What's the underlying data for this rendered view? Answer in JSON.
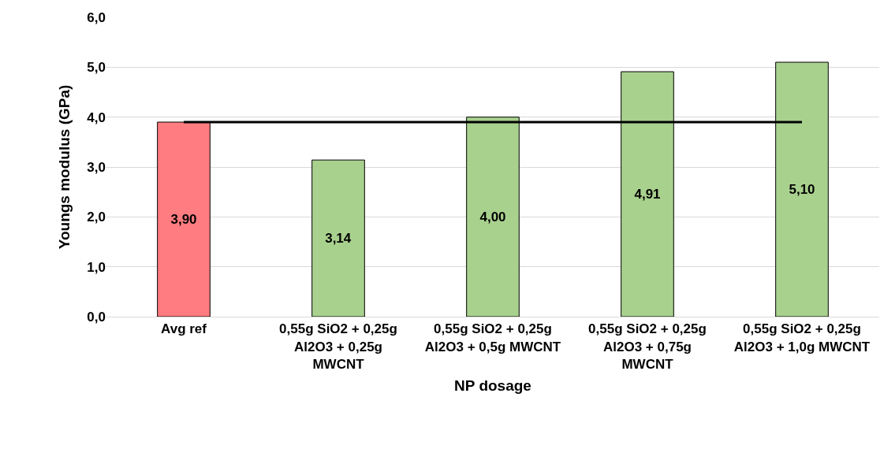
{
  "chart_data": {
    "type": "bar",
    "xlabel": "NP dosage",
    "ylabel": "Youngs modulus (GPa)",
    "categories": [
      "Avg ref",
      "0,55g SiO2 + 0,25g Al2O3 + 0,25g MWCNT",
      "0,55g SiO2 + 0,25g Al2O3 + 0,5g MWCNT",
      "0,55g SiO2 + 0,25g Al2O3 + 0,75g MWCNT",
      "0,55g SiO2 + 0,25g Al2O3 + 1,0g MWCNT"
    ],
    "values": [
      3.9,
      3.14,
      4.0,
      4.91,
      5.1
    ],
    "value_labels": [
      "3,90",
      "3,14",
      "4,00",
      "4,91",
      "5,10"
    ],
    "colors": [
      "#ff7c80",
      "#a9d18e",
      "#a9d18e",
      "#a9d18e",
      "#a9d18e"
    ],
    "ylim": [
      0,
      6
    ],
    "yticks": [
      {
        "value": 0,
        "label": "0,0"
      },
      {
        "value": 1,
        "label": "1,0"
      },
      {
        "value": 2,
        "label": "2,0"
      },
      {
        "value": 3,
        "label": "3,0"
      },
      {
        "value": 4,
        "label": "4,0"
      },
      {
        "value": 5,
        "label": "5,0"
      },
      {
        "value": 6,
        "label": "6,0"
      }
    ],
    "grid": "y",
    "ref_lines": [
      {
        "axis": "y",
        "value": 3.9,
        "color": "#000000"
      }
    ]
  }
}
